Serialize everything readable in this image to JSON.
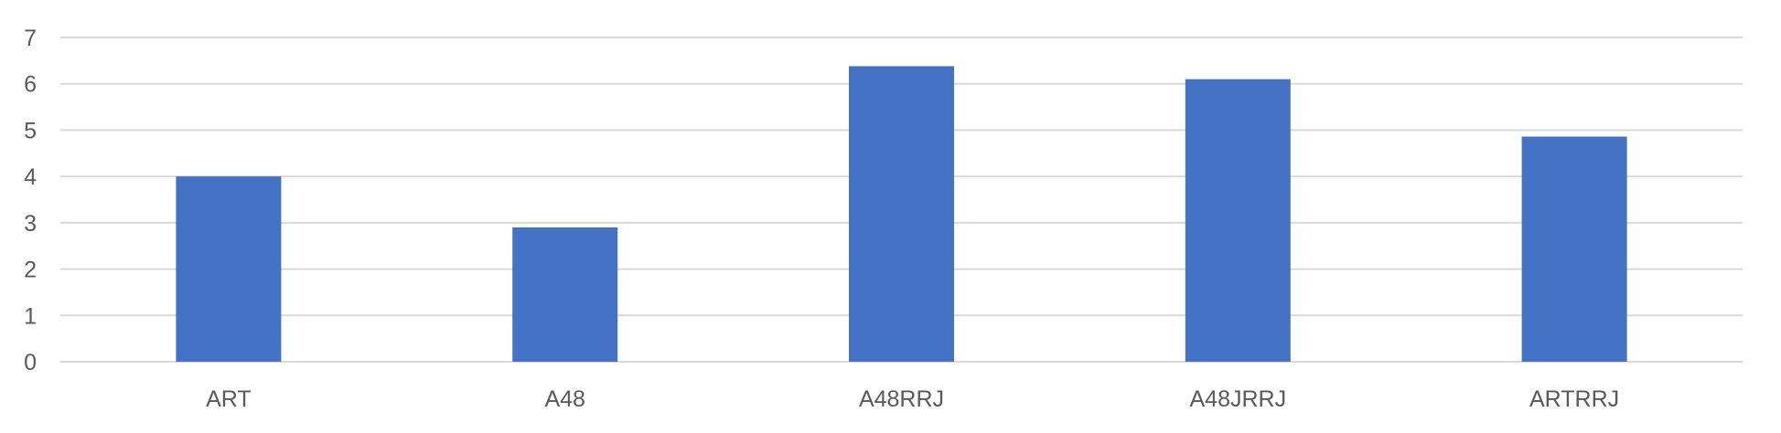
{
  "chart_data": {
    "type": "bar",
    "categories": [
      "ART",
      "A48",
      "A48RRJ",
      "A48JRRJ",
      "ARTRRJ"
    ],
    "values": [
      4.0,
      2.9,
      6.38,
      6.1,
      4.86
    ],
    "ylim": [
      0,
      7
    ],
    "yticks": [
      "0",
      "1",
      "2",
      "3",
      "4",
      "5",
      "6",
      "7"
    ],
    "grid": true,
    "legend": "none",
    "bar_color": "#4472C4",
    "grid_color": "#D9D9D9"
  }
}
